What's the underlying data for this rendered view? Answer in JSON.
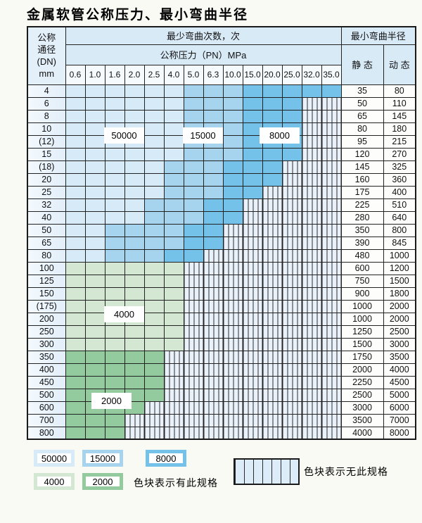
{
  "title": "金属软管公称压力、最小弯曲半径",
  "colors": {
    "b50": "#d6eaf7",
    "b15": "#a6d4ef",
    "b8": "#74c2ea",
    "g4": "#d4e7d3",
    "g2": "#93cb9e",
    "hatch_bg": "#e9f2fb"
  },
  "table": {
    "headers": {
      "dn_line1": "公称",
      "dn_line2": "通径",
      "dn_line3": "(DN)",
      "dn_line4": "mm",
      "bend_cycles": "最少弯曲次数，次",
      "pressure": "公称压力（PN）MPa",
      "bend_radius": "最小弯曲半径",
      "static": "静 态",
      "dynamic": "动 态"
    },
    "pressures": [
      "0.6",
      "1.0",
      "1.6",
      "2.0",
      "2.5",
      "4.0",
      "5.0",
      "6.3",
      "10.0",
      "15.0",
      "20.0",
      "25.0",
      "32.0",
      "35.0"
    ],
    "rows": [
      {
        "dn": "4",
        "static": "35",
        "dynamic": "80",
        "bands": [
          [
            "b50",
            6
          ],
          [
            "b15",
            3
          ],
          [
            "b8",
            5
          ]
        ]
      },
      {
        "dn": "6",
        "static": "50",
        "dynamic": "110",
        "bands": [
          [
            "b50",
            6
          ],
          [
            "b15",
            3
          ],
          [
            "b8",
            3
          ]
        ]
      },
      {
        "dn": "8",
        "static": "65",
        "dynamic": "145",
        "bands": [
          [
            "b50",
            6
          ],
          [
            "b15",
            3
          ],
          [
            "b8",
            3
          ]
        ]
      },
      {
        "dn": "10",
        "static": "80",
        "dynamic": "180",
        "bands": [
          [
            "b50",
            6
          ],
          [
            "b15",
            3
          ],
          [
            "b8",
            3
          ]
        ]
      },
      {
        "dn": "(12)",
        "static": "95",
        "dynamic": "215",
        "bands": [
          [
            "b50",
            6
          ],
          [
            "b15",
            3
          ],
          [
            "b8",
            3
          ]
        ]
      },
      {
        "dn": "15",
        "static": "120",
        "dynamic": "270",
        "bands": [
          [
            "b50",
            6
          ],
          [
            "b15",
            3
          ],
          [
            "b8",
            3
          ]
        ]
      },
      {
        "dn": "(18)",
        "static": "145",
        "dynamic": "325",
        "bands": [
          [
            "b50",
            5
          ],
          [
            "b15",
            3
          ],
          [
            "b8",
            3
          ]
        ]
      },
      {
        "dn": "20",
        "static": "160",
        "dynamic": "360",
        "bands": [
          [
            "b50",
            5
          ],
          [
            "b15",
            3
          ],
          [
            "b8",
            3
          ]
        ]
      },
      {
        "dn": "25",
        "static": "175",
        "dynamic": "400",
        "bands": [
          [
            "b50",
            5
          ],
          [
            "b15",
            3
          ],
          [
            "b8",
            2
          ]
        ]
      },
      {
        "dn": "32",
        "static": "225",
        "dynamic": "510",
        "bands": [
          [
            "b50",
            4
          ],
          [
            "b15",
            3
          ],
          [
            "b8",
            2
          ]
        ]
      },
      {
        "dn": "40",
        "static": "280",
        "dynamic": "640",
        "bands": [
          [
            "b50",
            4
          ],
          [
            "b15",
            3
          ],
          [
            "b8",
            2
          ]
        ]
      },
      {
        "dn": "50",
        "static": "350",
        "dynamic": "800",
        "bands": [
          [
            "b50",
            2
          ],
          [
            "b15",
            4
          ],
          [
            "b8",
            2
          ]
        ]
      },
      {
        "dn": "65",
        "static": "390",
        "dynamic": "845",
        "bands": [
          [
            "b50",
            2
          ],
          [
            "b15",
            4
          ],
          [
            "b8",
            2
          ]
        ]
      },
      {
        "dn": "80",
        "static": "480",
        "dynamic": "1000",
        "bands": [
          [
            "b50",
            2
          ],
          [
            "b15",
            3
          ],
          [
            "b8",
            2
          ]
        ]
      },
      {
        "dn": "100",
        "static": "600",
        "dynamic": "1200",
        "bands": [
          [
            "g4",
            6
          ]
        ]
      },
      {
        "dn": "125",
        "static": "750",
        "dynamic": "1500",
        "bands": [
          [
            "g4",
            6
          ]
        ]
      },
      {
        "dn": "150",
        "static": "900",
        "dynamic": "1800",
        "bands": [
          [
            "g4",
            6
          ]
        ]
      },
      {
        "dn": "(175)",
        "static": "1000",
        "dynamic": "2000",
        "bands": [
          [
            "g4",
            6
          ]
        ]
      },
      {
        "dn": "200",
        "static": "1000",
        "dynamic": "2000",
        "bands": [
          [
            "g4",
            6
          ]
        ]
      },
      {
        "dn": "250",
        "static": "1250",
        "dynamic": "2500",
        "bands": [
          [
            "g4",
            6
          ]
        ]
      },
      {
        "dn": "300",
        "static": "1500",
        "dynamic": "3000",
        "bands": [
          [
            "g4",
            6
          ]
        ]
      },
      {
        "dn": "350",
        "static": "1750",
        "dynamic": "3500",
        "bands": [
          [
            "g2",
            5
          ]
        ]
      },
      {
        "dn": "400",
        "static": "2000",
        "dynamic": "4000",
        "bands": [
          [
            "g2",
            5
          ]
        ]
      },
      {
        "dn": "450",
        "static": "2250",
        "dynamic": "4500",
        "bands": [
          [
            "g2",
            5
          ]
        ]
      },
      {
        "dn": "500",
        "static": "2500",
        "dynamic": "5000",
        "bands": [
          [
            "g2",
            5
          ]
        ]
      },
      {
        "dn": "600",
        "static": "3000",
        "dynamic": "6000",
        "bands": [
          [
            "g2",
            4
          ]
        ]
      },
      {
        "dn": "700",
        "static": "3500",
        "dynamic": "7000",
        "bands": [
          [
            "g2",
            3
          ]
        ]
      },
      {
        "dn": "800",
        "static": "4000",
        "dynamic": "8000",
        "bands": [
          [
            "g2",
            3
          ]
        ]
      }
    ]
  },
  "region_labels": {
    "r50000": "50000",
    "r15000": "15000",
    "r8000": "8000",
    "r4000": "4000",
    "r2000": "2000"
  },
  "legend": {
    "items": [
      {
        "label": "50000",
        "color": "b50"
      },
      {
        "label": "15000",
        "color": "b15"
      },
      {
        "label": "8000",
        "color": "b8"
      },
      {
        "label": "4000",
        "color": "g4"
      },
      {
        "label": "2000",
        "color": "g2"
      }
    ],
    "has_spec_text": "色块表示有此规格",
    "no_spec_text": "色块表示无此规格"
  }
}
